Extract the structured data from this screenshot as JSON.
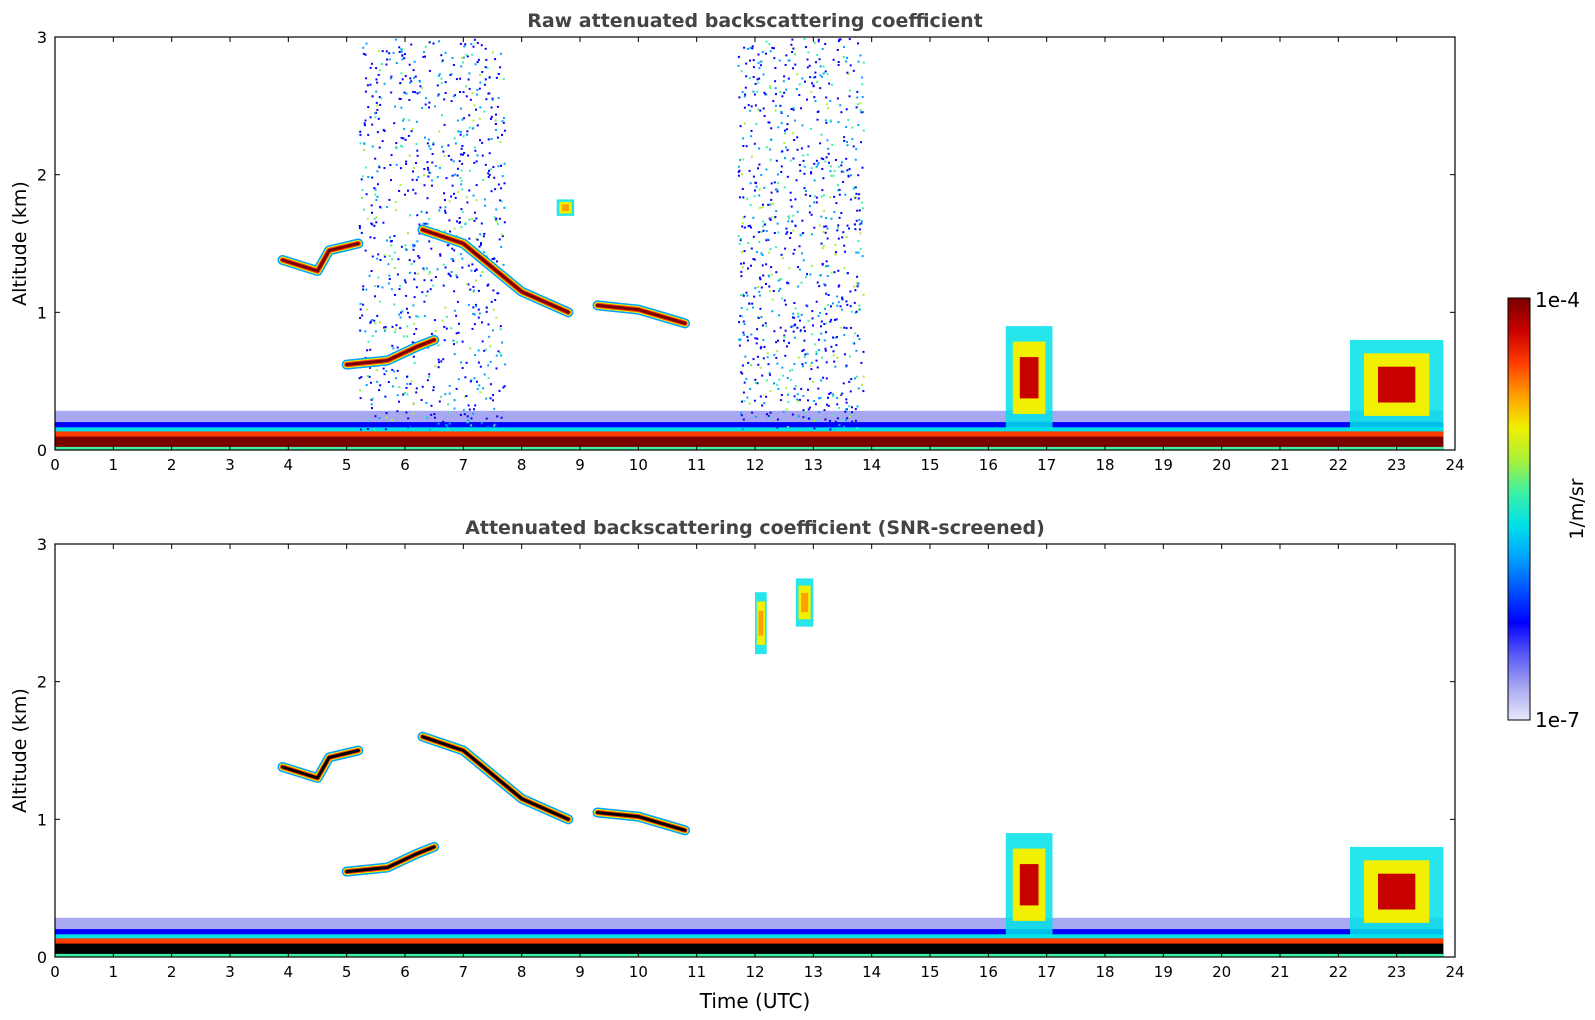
{
  "figure": {
    "colorbar": {
      "label": "1/m/sr",
      "max_label": "1e-4",
      "min_label": "1e-7",
      "scale": "log",
      "range": [
        1e-07,
        0.0001
      ],
      "colormap": [
        "#e8e8fb",
        "#a8a8f2",
        "#5a5af4",
        "#0000ff",
        "#0050ff",
        "#00a2ff",
        "#00e0e8",
        "#3cf0a6",
        "#a6f03c",
        "#f0f000",
        "#ffa000",
        "#ff3c00",
        "#c80000",
        "#7a0000"
      ]
    }
  },
  "chart_data": [
    {
      "type": "heatmap",
      "title": "Raw attenuated backscattering coefficient",
      "xlabel": "",
      "ylabel": "Altitude (km)",
      "xlim": [
        0,
        24
      ],
      "ylim": [
        0,
        3
      ],
      "x_ticks": [
        "0",
        "1",
        "2",
        "3",
        "4",
        "5",
        "6",
        "7",
        "8",
        "9",
        "10",
        "11",
        "12",
        "13",
        "14",
        "15",
        "16",
        "17",
        "18",
        "19",
        "20",
        "21",
        "22",
        "23",
        "24"
      ],
      "y_ticks": [
        "0",
        "1",
        "2",
        "3"
      ],
      "features": [
        {
          "kind": "surface_layer",
          "x_range": [
            0,
            23.8
          ],
          "top_km": 0.15,
          "intensity": "high"
        },
        {
          "kind": "noise_region",
          "x_range": [
            5.2,
            7.7
          ],
          "y_range": [
            0.15,
            3.0
          ]
        },
        {
          "kind": "noise_region",
          "x_range": [
            11.7,
            13.85
          ],
          "y_range": [
            0.15,
            3.0
          ]
        },
        {
          "kind": "cloud_layer",
          "points": [
            [
              3.9,
              1.38
            ],
            [
              4.5,
              1.3
            ],
            [
              4.7,
              1.45
            ],
            [
              5.2,
              1.5
            ]
          ]
        },
        {
          "kind": "cloud_layer",
          "points": [
            [
              6.3,
              1.6
            ],
            [
              7.0,
              1.5
            ],
            [
              8.0,
              1.15
            ],
            [
              8.8,
              1.0
            ]
          ]
        },
        {
          "kind": "cloud_layer",
          "points": [
            [
              9.3,
              1.05
            ],
            [
              10.0,
              1.02
            ],
            [
              10.8,
              0.92
            ]
          ]
        },
        {
          "kind": "cloud_layer",
          "points": [
            [
              5.0,
              0.62
            ],
            [
              5.7,
              0.65
            ],
            [
              6.2,
              0.75
            ],
            [
              6.5,
              0.8
            ]
          ]
        },
        {
          "kind": "cloud_patch",
          "x_range": [
            8.6,
            8.9
          ],
          "y_range": [
            1.7,
            1.82
          ]
        },
        {
          "kind": "aerosol_column",
          "x_range": [
            16.3,
            17.1
          ],
          "y_range": [
            0.15,
            0.9
          ]
        },
        {
          "kind": "aerosol_column",
          "x_range": [
            22.2,
            23.8
          ],
          "y_range": [
            0.15,
            0.8
          ]
        }
      ]
    },
    {
      "type": "heatmap",
      "title": "Attenuated backscattering coefficient (SNR-screened)",
      "xlabel": "Time (UTC)",
      "ylabel": "Altitude (km)",
      "xlim": [
        0,
        24
      ],
      "ylim": [
        0,
        3
      ],
      "x_ticks": [
        "0",
        "1",
        "2",
        "3",
        "4",
        "5",
        "6",
        "7",
        "8",
        "9",
        "10",
        "11",
        "12",
        "13",
        "14",
        "15",
        "16",
        "17",
        "18",
        "19",
        "20",
        "21",
        "22",
        "23",
        "24"
      ],
      "y_ticks": [
        "0",
        "1",
        "2",
        "3"
      ],
      "features": [
        {
          "kind": "surface_layer",
          "x_range": [
            0,
            23.8
          ],
          "top_km": 0.15,
          "intensity": "saturated"
        },
        {
          "kind": "cloud_layer",
          "points": [
            [
              3.9,
              1.38
            ],
            [
              4.5,
              1.3
            ],
            [
              4.7,
              1.45
            ],
            [
              5.2,
              1.5
            ]
          ]
        },
        {
          "kind": "cloud_layer",
          "points": [
            [
              6.3,
              1.6
            ],
            [
              7.0,
              1.5
            ],
            [
              8.0,
              1.15
            ],
            [
              8.8,
              1.0
            ]
          ]
        },
        {
          "kind": "cloud_layer",
          "points": [
            [
              9.3,
              1.05
            ],
            [
              10.0,
              1.02
            ],
            [
              10.8,
              0.92
            ]
          ]
        },
        {
          "kind": "cloud_layer",
          "points": [
            [
              5.0,
              0.62
            ],
            [
              5.7,
              0.65
            ],
            [
              6.2,
              0.75
            ],
            [
              6.5,
              0.8
            ]
          ]
        },
        {
          "kind": "cloud_patch",
          "x_range": [
            12.0,
            12.2
          ],
          "y_range": [
            2.2,
            2.65
          ]
        },
        {
          "kind": "cloud_patch",
          "x_range": [
            12.7,
            13.0
          ],
          "y_range": [
            2.4,
            2.75
          ]
        },
        {
          "kind": "aerosol_column",
          "x_range": [
            16.3,
            17.1
          ],
          "y_range": [
            0.15,
            0.9
          ]
        },
        {
          "kind": "aerosol_column",
          "x_range": [
            22.2,
            23.8
          ],
          "y_range": [
            0.15,
            0.8
          ]
        }
      ]
    }
  ]
}
